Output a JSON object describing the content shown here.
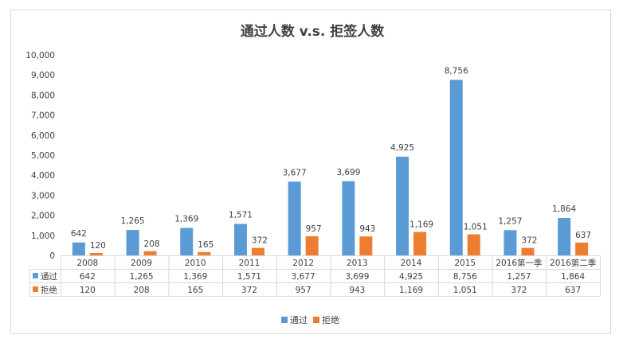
{
  "chart_data": {
    "type": "bar",
    "title": "通过人数 v.s. 拒签人数",
    "categories": [
      "2008",
      "2009",
      "2010",
      "2011",
      "2012",
      "2013",
      "2014",
      "2015",
      "2016第一季",
      "2016第二季"
    ],
    "series": [
      {
        "name": "通过",
        "color": "#5b9bd5",
        "values": [
          642,
          1265,
          1369,
          1571,
          3677,
          3699,
          4925,
          8756,
          1257,
          1864
        ]
      },
      {
        "name": "拒绝",
        "color": "#ed7d31",
        "values": [
          120,
          208,
          165,
          372,
          957,
          943,
          1169,
          1051,
          372,
          637
        ]
      }
    ],
    "ylim": [
      0,
      10000
    ],
    "yticks": [
      "0",
      "1,000",
      "2,000",
      "3,000",
      "4,000",
      "5,000",
      "6,000",
      "7,000",
      "8,000",
      "9,000",
      "10,000"
    ],
    "data_table": true,
    "legend_position": "bottom",
    "grid": false
  }
}
